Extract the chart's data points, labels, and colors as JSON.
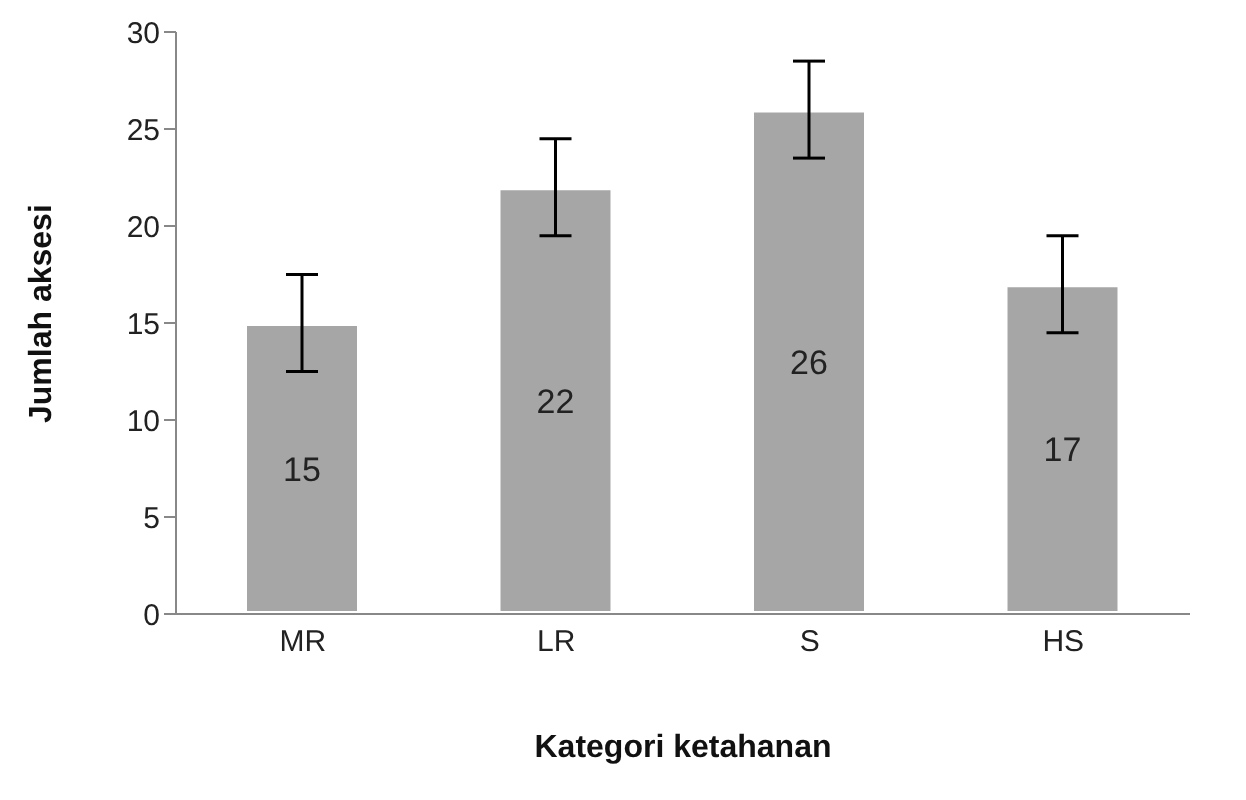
{
  "chart_data": {
    "type": "bar",
    "xlabel": "Kategori ketahanan",
    "ylabel": "Jumlah aksesi",
    "categories": [
      "MR",
      "LR",
      "S",
      "HS"
    ],
    "values": [
      15,
      22,
      26,
      17
    ],
    "errors": [
      2.5,
      2.5,
      2.5,
      2.5
    ],
    "color": "#a6a6a6",
    "ylim": [
      0,
      30
    ],
    "yticks": [
      0,
      5,
      10,
      15,
      20,
      25,
      30
    ],
    "data_labels": true,
    "grid": false,
    "legend": false
  }
}
